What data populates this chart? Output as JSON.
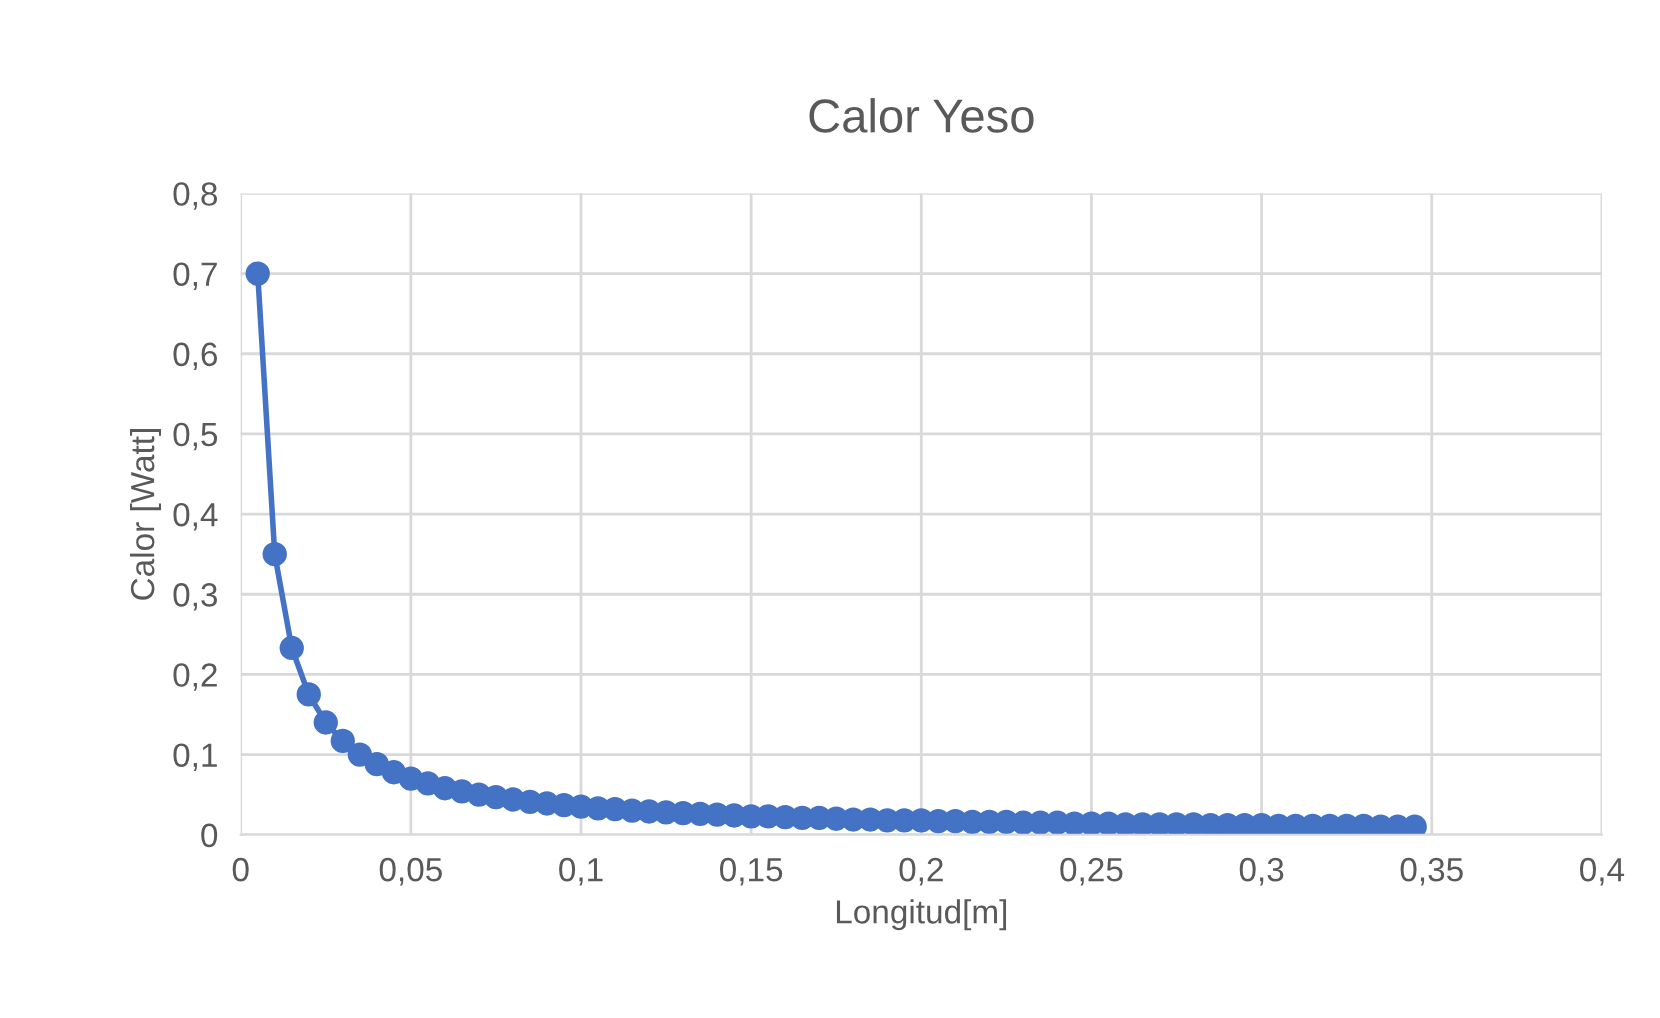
{
  "chart_data": {
    "type": "line",
    "title": "Calor Yeso",
    "xlabel": "Longitud[m]",
    "ylabel": "Calor [Watt]",
    "x": [
      0.005,
      0.01,
      0.015,
      0.02,
      0.025,
      0.03,
      0.035,
      0.04,
      0.045,
      0.05,
      0.055,
      0.06,
      0.065,
      0.07,
      0.075,
      0.08,
      0.085,
      0.09,
      0.095,
      0.1,
      0.105,
      0.11,
      0.115,
      0.12,
      0.125,
      0.13,
      0.135,
      0.14,
      0.145,
      0.15,
      0.155,
      0.16,
      0.165,
      0.17,
      0.175,
      0.18,
      0.185,
      0.19,
      0.195,
      0.2,
      0.205,
      0.21,
      0.215,
      0.22,
      0.225,
      0.23,
      0.235,
      0.24,
      0.245,
      0.25,
      0.255,
      0.26,
      0.265,
      0.27,
      0.275,
      0.28,
      0.285,
      0.29,
      0.295,
      0.3,
      0.305,
      0.31,
      0.315,
      0.32,
      0.325,
      0.33,
      0.335,
      0.34,
      0.345
    ],
    "series": [
      {
        "color": "#4472c4",
        "values": [
          0.7,
          0.35,
          0.233,
          0.175,
          0.14,
          0.117,
          0.1,
          0.088,
          0.078,
          0.07,
          0.064,
          0.058,
          0.054,
          0.05,
          0.047,
          0.044,
          0.041,
          0.039,
          0.037,
          0.035,
          0.033,
          0.032,
          0.03,
          0.029,
          0.028,
          0.027,
          0.026,
          0.025,
          0.024,
          0.023,
          0.023,
          0.022,
          0.021,
          0.021,
          0.02,
          0.019,
          0.019,
          0.018,
          0.018,
          0.018,
          0.017,
          0.017,
          0.016,
          0.016,
          0.016,
          0.015,
          0.015,
          0.015,
          0.014,
          0.014,
          0.014,
          0.013,
          0.013,
          0.013,
          0.013,
          0.013,
          0.012,
          0.012,
          0.012,
          0.012,
          0.011,
          0.011,
          0.011,
          0.011,
          0.011,
          0.011,
          0.01,
          0.01,
          0.01
        ]
      }
    ],
    "xlim": [
      0,
      0.4
    ],
    "xticks": [
      0,
      {
        "value": 0.05,
        "label": "0,05"
      },
      {
        "value": 0.1,
        "label": "0,1"
      },
      {
        "value": 0.15,
        "label": "0,15"
      },
      {
        "value": 0.2,
        "label": "0,2"
      },
      {
        "value": 0.25,
        "label": "0,25"
      },
      {
        "value": 0.3,
        "label": "0,3"
      },
      {
        "value": 0.35,
        "label": "0,35"
      },
      {
        "value": 0.4,
        "label": "0,4"
      }
    ],
    "ylim": [
      0,
      0.8
    ],
    "yticks": [
      0,
      {
        "value": 0.1,
        "label": "0,1"
      },
      {
        "value": 0.2,
        "label": "0,2"
      },
      {
        "value": 0.3,
        "label": "0,3"
      },
      {
        "value": 0.4,
        "label": "0,4"
      },
      {
        "value": 0.5,
        "label": "0,5"
      },
      {
        "value": 0.6,
        "label": "0,6"
      },
      {
        "value": 0.7,
        "label": "0,7"
      },
      {
        "value": 0.8,
        "label": "0,8"
      }
    ],
    "grid": true,
    "marker": "circle",
    "line_style": "solid"
  }
}
